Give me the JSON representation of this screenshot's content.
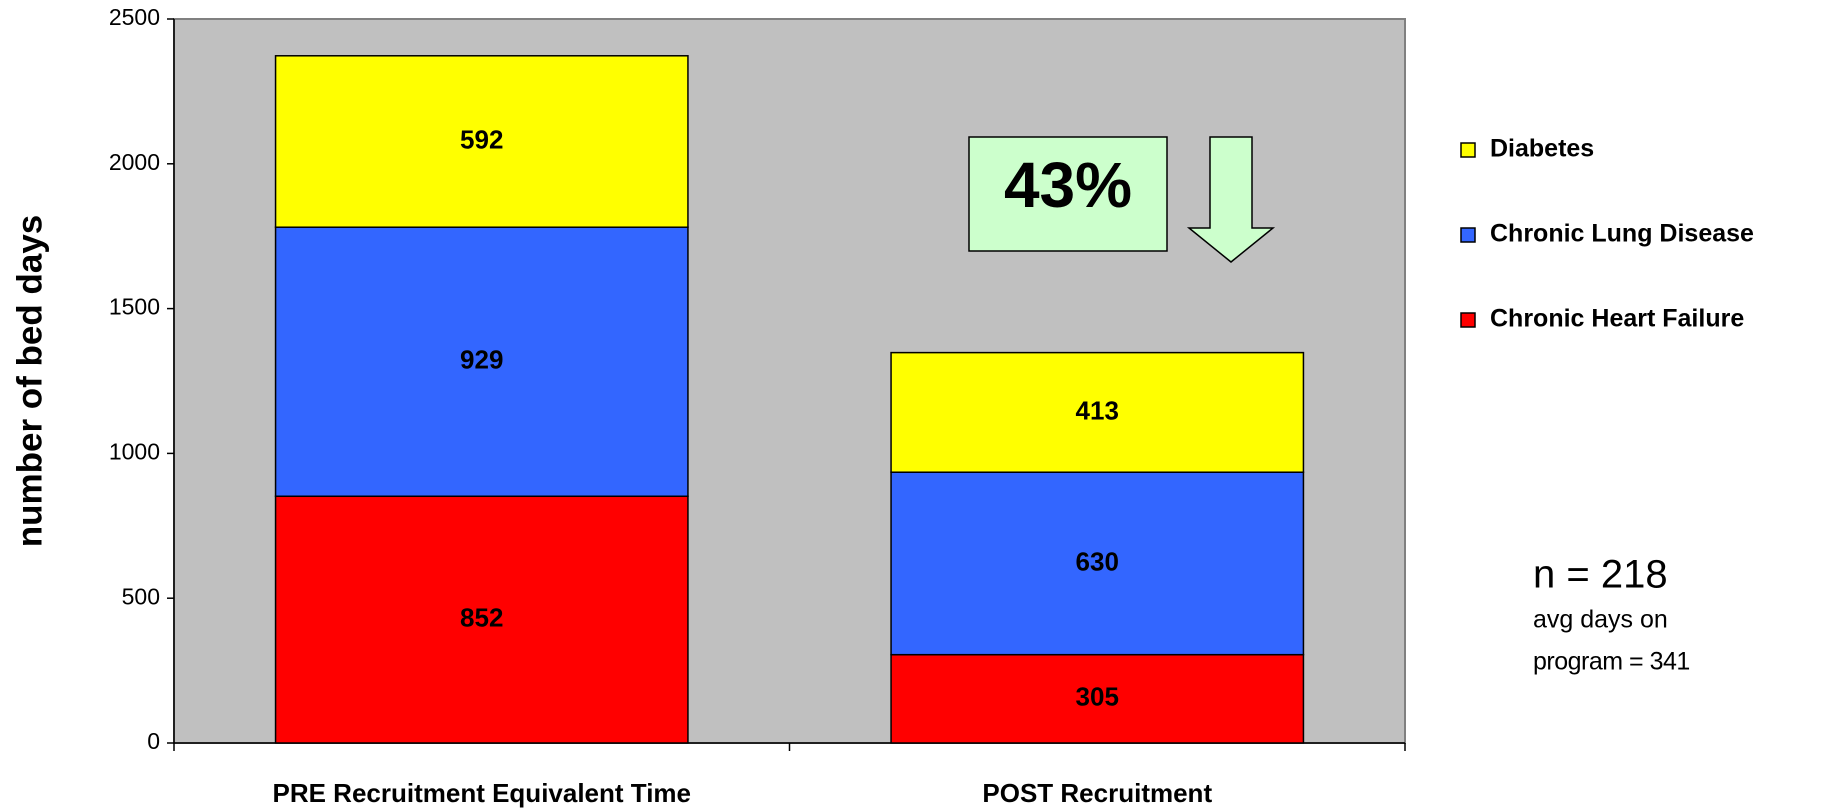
{
  "chart_data": {
    "type": "stacked_bar",
    "y_label": "number of bed days",
    "categories": [
      "PRE Recruitment Equivalent Time",
      "POST Recruitment"
    ],
    "series": [
      {
        "name": "Chronic Heart Failure",
        "color": "#ff0000",
        "values": [
          852,
          305
        ]
      },
      {
        "name": "Chronic Lung Disease",
        "color": "#3366ff",
        "values": [
          929,
          630
        ]
      },
      {
        "name": "Diabetes",
        "color": "#ffff00",
        "values": [
          592,
          413
        ]
      }
    ],
    "ylim": [
      0,
      2500
    ],
    "yticks": [
      0,
      500,
      1000,
      1500,
      2000,
      2500
    ],
    "legend": "right",
    "annotations": [
      "43%",
      "n = 218",
      "avg days on",
      "program = 341"
    ]
  }
}
